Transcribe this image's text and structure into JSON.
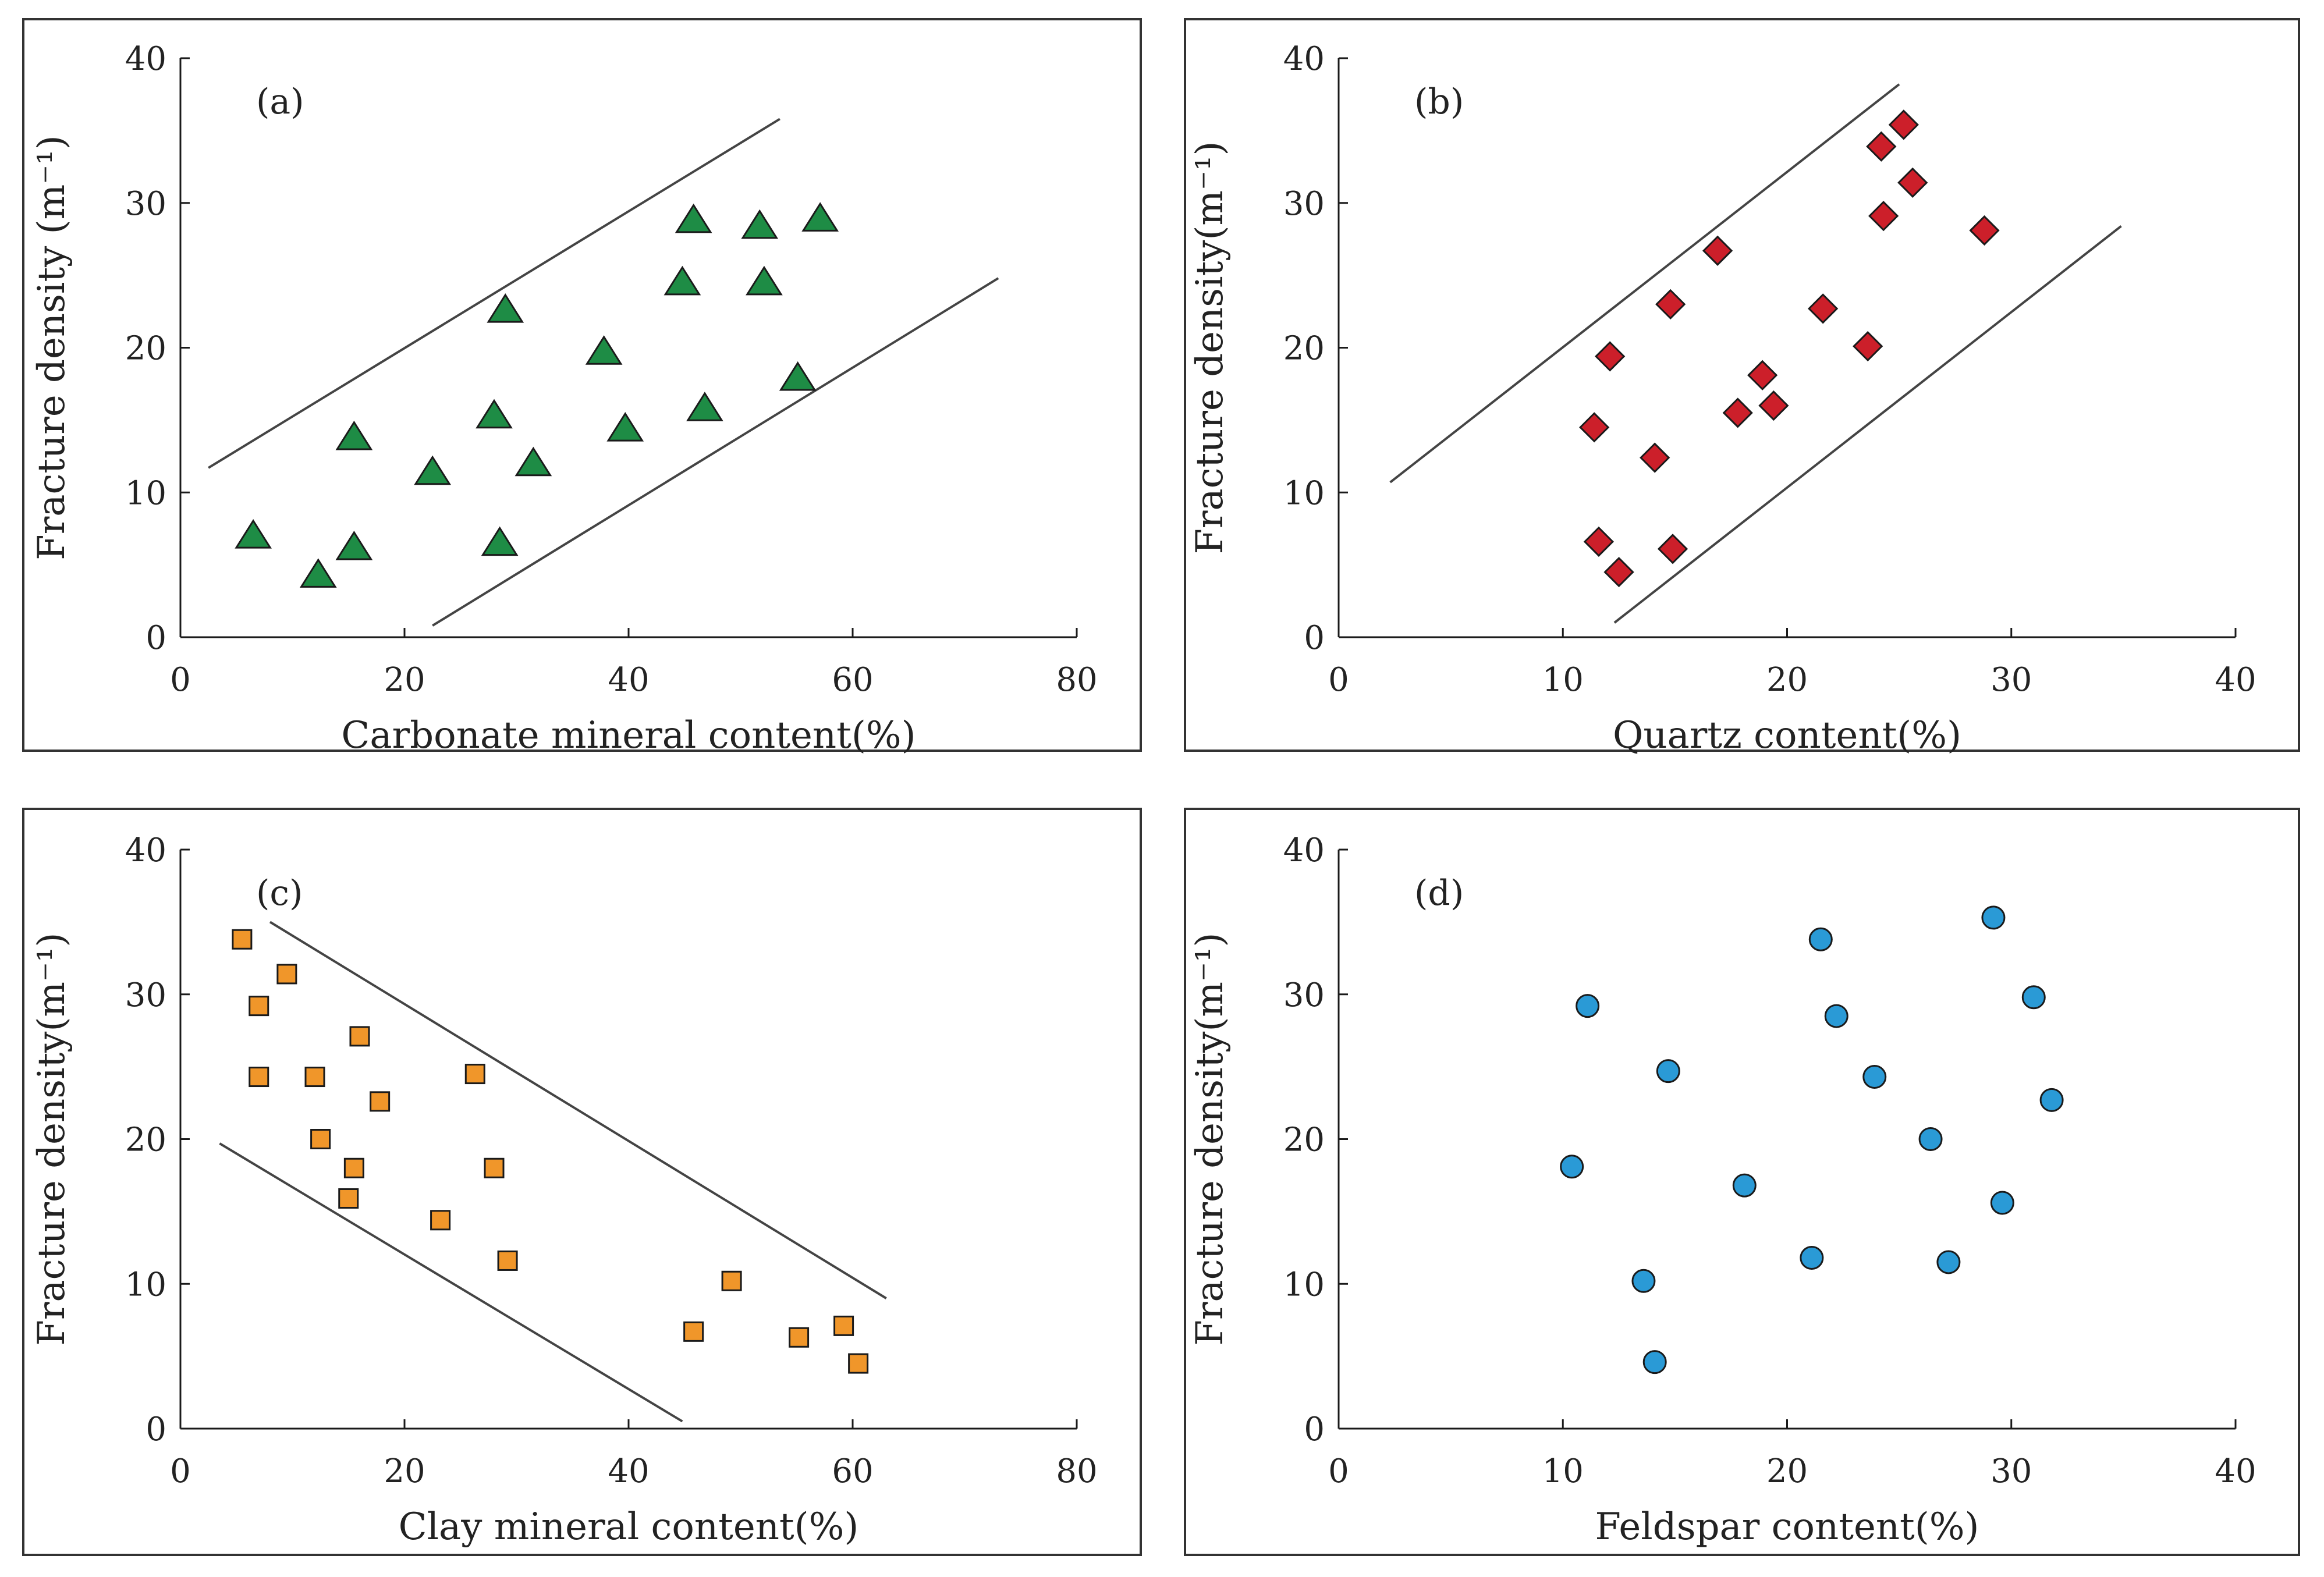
{
  "colors": {
    "triangle": "#1e8c45",
    "diamond": "#cc1f2a",
    "square": "#f0962a",
    "circle": "#2a9ad6",
    "stroke": "#1a1a1a",
    "frame": "#333333",
    "envelope": "#444444"
  },
  "chart_data": [
    {
      "type": "scatter",
      "panel_label": "(a)",
      "xlabel": "Carbonate mineral content(%)",
      "ylabel": "Fracture density (m⁻¹)",
      "xlim": [
        0,
        80
      ],
      "ylim": [
        0,
        40
      ],
      "xticks": [
        0,
        20,
        40,
        60,
        80
      ],
      "yticks": [
        0,
        10,
        20,
        30,
        40
      ],
      "marker": "triangle",
      "color_key": "triangle",
      "points": [
        {
          "x": 6.5,
          "y": 7.0
        },
        {
          "x": 12.3,
          "y": 4.3
        },
        {
          "x": 15.5,
          "y": 6.2
        },
        {
          "x": 15.5,
          "y": 13.8
        },
        {
          "x": 22.5,
          "y": 11.4
        },
        {
          "x": 28.0,
          "y": 15.3
        },
        {
          "x": 28.5,
          "y": 6.5
        },
        {
          "x": 29.0,
          "y": 22.6
        },
        {
          "x": 31.5,
          "y": 12.0
        },
        {
          "x": 37.8,
          "y": 19.7
        },
        {
          "x": 39.7,
          "y": 14.4
        },
        {
          "x": 44.8,
          "y": 24.5
        },
        {
          "x": 45.8,
          "y": 28.8
        },
        {
          "x": 46.8,
          "y": 15.8
        },
        {
          "x": 51.7,
          "y": 28.4
        },
        {
          "x": 52.1,
          "y": 24.5
        },
        {
          "x": 55.1,
          "y": 17.9
        },
        {
          "x": 57.1,
          "y": 28.9
        }
      ],
      "envelope_lines": [
        {
          "x1": 2.5,
          "y1": 11.7,
          "x2": 53.5,
          "y2": 35.8
        },
        {
          "x1": 22.5,
          "y1": 0.8,
          "x2": 73.0,
          "y2": 24.8
        }
      ]
    },
    {
      "type": "scatter",
      "panel_label": "(b)",
      "xlabel": "Quartz content(%)",
      "ylabel": "Fracture density(m⁻¹)",
      "xlim": [
        0,
        40
      ],
      "ylim": [
        0,
        40
      ],
      "xticks": [
        0,
        10,
        20,
        30,
        40
      ],
      "yticks": [
        0,
        10,
        20,
        30,
        40
      ],
      "marker": "diamond",
      "color_key": "diamond",
      "points": [
        {
          "x": 11.4,
          "y": 14.5
        },
        {
          "x": 11.6,
          "y": 6.6
        },
        {
          "x": 12.1,
          "y": 19.4
        },
        {
          "x": 12.5,
          "y": 4.5
        },
        {
          "x": 14.1,
          "y": 12.4
        },
        {
          "x": 14.8,
          "y": 23.0
        },
        {
          "x": 14.9,
          "y": 6.1
        },
        {
          "x": 16.9,
          "y": 26.7
        },
        {
          "x": 17.8,
          "y": 15.5
        },
        {
          "x": 18.9,
          "y": 18.1
        },
        {
          "x": 19.4,
          "y": 16.0
        },
        {
          "x": 21.6,
          "y": 22.7
        },
        {
          "x": 23.6,
          "y": 20.1
        },
        {
          "x": 24.2,
          "y": 33.9
        },
        {
          "x": 24.3,
          "y": 29.1
        },
        {
          "x": 25.2,
          "y": 35.4
        },
        {
          "x": 25.6,
          "y": 31.4
        },
        {
          "x": 28.8,
          "y": 28.1
        }
      ],
      "envelope_lines": [
        {
          "x1": 2.3,
          "y1": 10.7,
          "x2": 25.0,
          "y2": 38.2
        },
        {
          "x1": 12.3,
          "y1": 1.0,
          "x2": 34.9,
          "y2": 28.4
        }
      ]
    },
    {
      "type": "scatter",
      "panel_label": "(c)",
      "xlabel": "Clay mineral content(%)",
      "ylabel": "Fracture density(m⁻¹)",
      "xlim": [
        0,
        80
      ],
      "ylim": [
        0,
        40
      ],
      "xticks": [
        0,
        20,
        40,
        60,
        80
      ],
      "yticks": [
        0,
        10,
        20,
        30,
        40
      ],
      "marker": "square",
      "color_key": "square",
      "points": [
        {
          "x": 5.5,
          "y": 33.8
        },
        {
          "x": 9.5,
          "y": 31.4
        },
        {
          "x": 7.0,
          "y": 29.2
        },
        {
          "x": 7.0,
          "y": 24.3
        },
        {
          "x": 12.0,
          "y": 24.3
        },
        {
          "x": 16.0,
          "y": 27.1
        },
        {
          "x": 17.8,
          "y": 22.6
        },
        {
          "x": 12.5,
          "y": 20.0
        },
        {
          "x": 15.5,
          "y": 18.0
        },
        {
          "x": 15.0,
          "y": 15.9
        },
        {
          "x": 23.2,
          "y": 14.4
        },
        {
          "x": 26.3,
          "y": 24.5
        },
        {
          "x": 28.0,
          "y": 18.0
        },
        {
          "x": 29.2,
          "y": 11.6
        },
        {
          "x": 45.8,
          "y": 6.7
        },
        {
          "x": 49.2,
          "y": 10.2
        },
        {
          "x": 55.2,
          "y": 6.3
        },
        {
          "x": 59.2,
          "y": 7.1
        },
        {
          "x": 60.5,
          "y": 4.5
        }
      ],
      "envelope_lines": [
        {
          "x1": 8.0,
          "y1": 35.0,
          "x2": 63.0,
          "y2": 9.0
        },
        {
          "x1": 3.5,
          "y1": 19.7,
          "x2": 44.8,
          "y2": 0.5
        }
      ]
    },
    {
      "type": "scatter",
      "panel_label": "(d)",
      "xlabel": "Feldspar content(%)",
      "ylabel": "Fracture density(m⁻¹)",
      "xlim": [
        0,
        40
      ],
      "ylim": [
        0,
        40
      ],
      "xticks": [
        0,
        10,
        20,
        30,
        40
      ],
      "yticks": [
        0,
        10,
        20,
        30,
        40
      ],
      "marker": "circle",
      "color_key": "circle",
      "points": [
        {
          "x": 10.4,
          "y": 18.1
        },
        {
          "x": 11.1,
          "y": 29.2
        },
        {
          "x": 13.6,
          "y": 10.2
        },
        {
          "x": 14.1,
          "y": 4.6
        },
        {
          "x": 14.7,
          "y": 24.7
        },
        {
          "x": 18.1,
          "y": 16.8
        },
        {
          "x": 21.1,
          "y": 11.8
        },
        {
          "x": 21.5,
          "y": 33.8
        },
        {
          "x": 22.2,
          "y": 28.5
        },
        {
          "x": 23.9,
          "y": 24.3
        },
        {
          "x": 26.4,
          "y": 20.0
        },
        {
          "x": 27.2,
          "y": 11.5
        },
        {
          "x": 29.2,
          "y": 35.3
        },
        {
          "x": 29.6,
          "y": 15.6
        },
        {
          "x": 31.0,
          "y": 29.8
        },
        {
          "x": 31.8,
          "y": 22.7
        }
      ],
      "envelope_lines": []
    }
  ]
}
